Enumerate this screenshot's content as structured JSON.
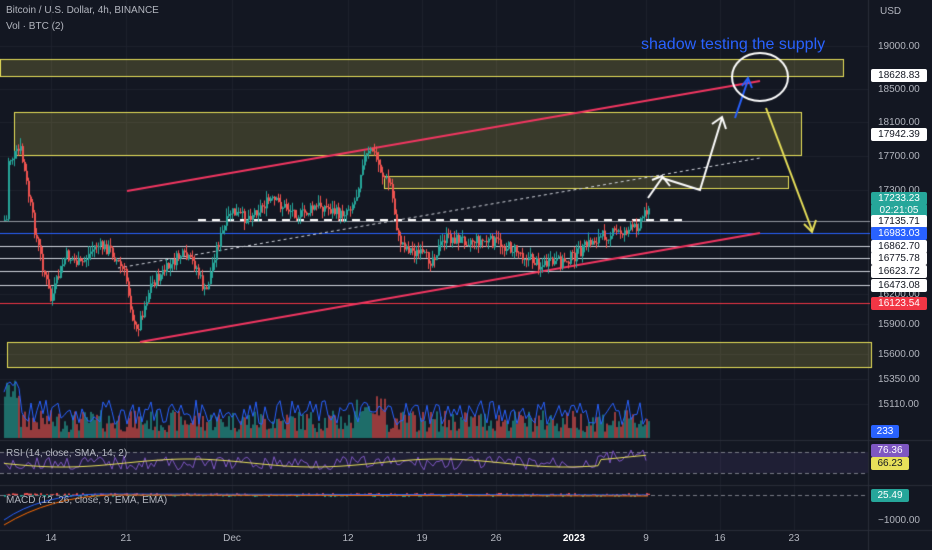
{
  "header": {
    "title": "Bitcoin / U.S. Dollar, 4h, BINANCE",
    "volume": "Vol · BTC (2)",
    "currency": "USD"
  },
  "annotation": {
    "text": "shadow testing the supply",
    "color": "#2962ff"
  },
  "colors": {
    "up": "#26a69a",
    "down": "#ef5350",
    "zone": "#e8e05a",
    "channel": "#f23661",
    "volbar": "#2962ff",
    "background": "#131722"
  },
  "price_axis": {
    "ticks": [
      "19000.00",
      "18500.00",
      "18100.00",
      "17700.00",
      "17300.00",
      "16200.00",
      "15900.00",
      "15600.00",
      "15350.00",
      "15110.00"
    ],
    "labels": [
      {
        "text": "18628.83",
        "bg": "#ffffff",
        "fg": "#131722"
      },
      {
        "text": "17942.39",
        "bg": "#ffffff",
        "fg": "#131722"
      },
      {
        "text": "17233.23",
        "bg": "#26a69a",
        "fg": "#ffffff"
      },
      {
        "text": "02:21:05",
        "bg": "#26a69a",
        "fg": "#ffffff"
      },
      {
        "text": "17135.71",
        "bg": "#ffffff",
        "fg": "#131722"
      },
      {
        "text": "16983.03",
        "bg": "#2962ff",
        "fg": "#ffffff"
      },
      {
        "text": "16862.70",
        "bg": "#ffffff",
        "fg": "#131722"
      },
      {
        "text": "16775.78",
        "bg": "#ffffff",
        "fg": "#131722"
      },
      {
        "text": "16623.72",
        "bg": "#ffffff",
        "fg": "#131722"
      },
      {
        "text": "16473.08",
        "bg": "#ffffff",
        "fg": "#131722"
      },
      {
        "text": "16123.54",
        "bg": "#f23645",
        "fg": "#ffffff"
      },
      {
        "text": "233",
        "bg": "#2962ff",
        "fg": "#ffffff"
      }
    ]
  },
  "rsi": {
    "label": "RSI (14, close, SMA, 14, 2)",
    "value1": "76.36",
    "value2": "66.23"
  },
  "macd": {
    "label": "MACD (12, 26, close, 9, EMA, EMA)",
    "value": "25.49",
    "tick": "−1000.00"
  },
  "time_axis": [
    "14",
    "21",
    "Dec",
    "12",
    "19",
    "26",
    "2023",
    "9",
    "16",
    "23"
  ]
}
